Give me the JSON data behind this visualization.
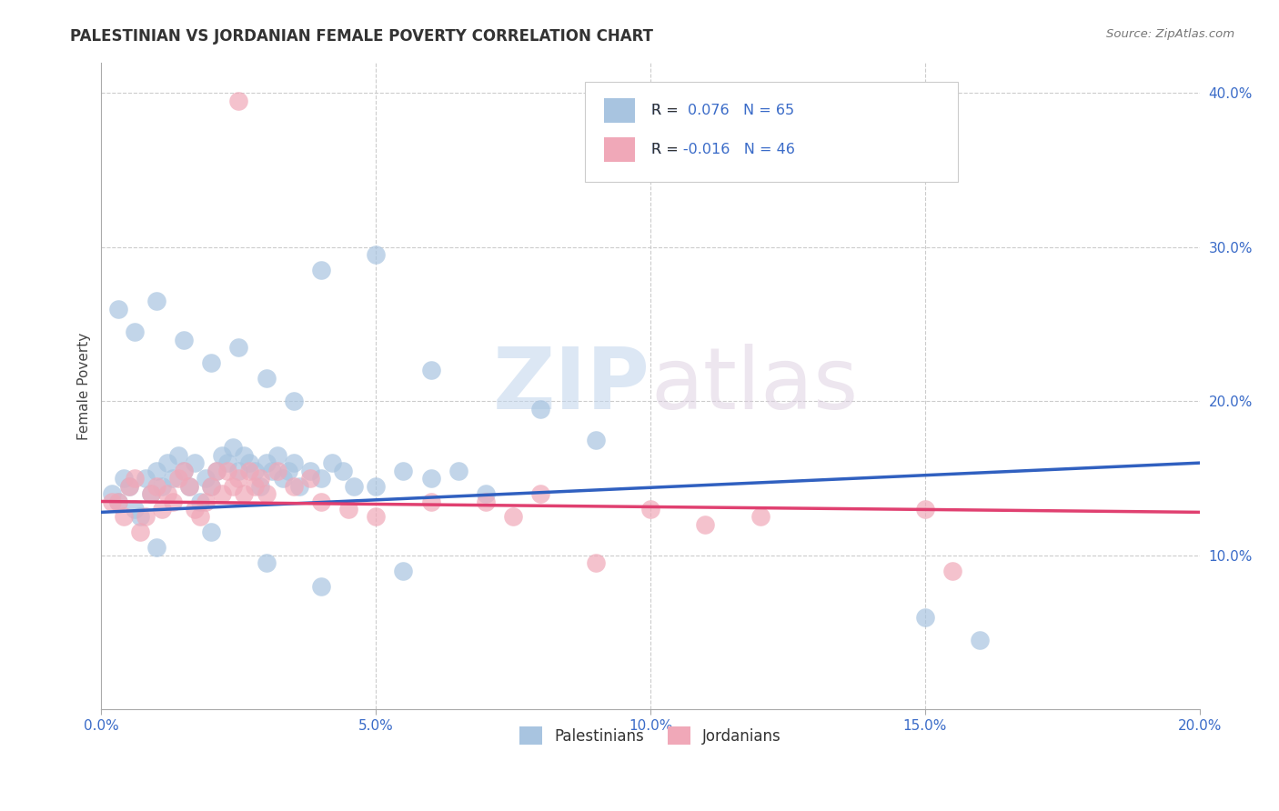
{
  "title": "PALESTINIAN VS JORDANIAN FEMALE POVERTY CORRELATION CHART",
  "source": "Source: ZipAtlas.com",
  "ylabel": "Female Poverty",
  "xlim": [
    0.0,
    0.2
  ],
  "ylim": [
    0.0,
    0.42
  ],
  "xticks": [
    0.0,
    0.05,
    0.1,
    0.15,
    0.2
  ],
  "xtick_labels": [
    "0.0%",
    "5.0%",
    "10.0%",
    "15.0%",
    "20.0%"
  ],
  "yticks": [
    0.1,
    0.2,
    0.3,
    0.4
  ],
  "ytick_labels": [
    "10.0%",
    "20.0%",
    "30.0%",
    "40.0%"
  ],
  "blue_color": "#a8c4e0",
  "pink_color": "#f0a8b8",
  "blue_edge_color": "#7aaad0",
  "pink_edge_color": "#e080a0",
  "blue_line_color": "#3060c0",
  "pink_line_color": "#e04070",
  "R_blue": 0.076,
  "N_blue": 65,
  "R_pink": -0.016,
  "N_pink": 46,
  "watermark_zip": "ZIP",
  "watermark_atlas": "atlas",
  "legend_labels": [
    "Palestinians",
    "Jordanians"
  ],
  "blue_x": [
    0.002,
    0.003,
    0.004,
    0.005,
    0.006,
    0.007,
    0.008,
    0.009,
    0.01,
    0.011,
    0.012,
    0.013,
    0.014,
    0.015,
    0.016,
    0.017,
    0.018,
    0.019,
    0.02,
    0.021,
    0.022,
    0.023,
    0.024,
    0.025,
    0.026,
    0.027,
    0.028,
    0.029,
    0.03,
    0.031,
    0.032,
    0.033,
    0.034,
    0.035,
    0.036,
    0.038,
    0.04,
    0.042,
    0.044,
    0.046,
    0.05,
    0.055,
    0.06,
    0.065,
    0.07,
    0.003,
    0.006,
    0.01,
    0.015,
    0.02,
    0.025,
    0.03,
    0.035,
    0.04,
    0.05,
    0.06,
    0.08,
    0.09,
    0.15,
    0.16,
    0.01,
    0.02,
    0.03,
    0.04,
    0.055
  ],
  "blue_y": [
    0.14,
    0.135,
    0.15,
    0.145,
    0.13,
    0.125,
    0.15,
    0.14,
    0.155,
    0.145,
    0.16,
    0.15,
    0.165,
    0.155,
    0.145,
    0.16,
    0.135,
    0.15,
    0.145,
    0.155,
    0.165,
    0.16,
    0.17,
    0.155,
    0.165,
    0.16,
    0.155,
    0.145,
    0.16,
    0.155,
    0.165,
    0.15,
    0.155,
    0.16,
    0.145,
    0.155,
    0.15,
    0.16,
    0.155,
    0.145,
    0.145,
    0.155,
    0.15,
    0.155,
    0.14,
    0.26,
    0.245,
    0.265,
    0.24,
    0.225,
    0.235,
    0.215,
    0.2,
    0.285,
    0.295,
    0.22,
    0.195,
    0.175,
    0.06,
    0.045,
    0.105,
    0.115,
    0.095,
    0.08,
    0.09
  ],
  "pink_x": [
    0.002,
    0.003,
    0.004,
    0.005,
    0.006,
    0.007,
    0.008,
    0.009,
    0.01,
    0.011,
    0.012,
    0.013,
    0.014,
    0.015,
    0.016,
    0.017,
    0.018,
    0.019,
    0.02,
    0.021,
    0.022,
    0.023,
    0.024,
    0.025,
    0.026,
    0.027,
    0.028,
    0.029,
    0.03,
    0.032,
    0.035,
    0.038,
    0.04,
    0.045,
    0.05,
    0.06,
    0.07,
    0.075,
    0.08,
    0.09,
    0.1,
    0.11,
    0.12,
    0.15,
    0.155,
    0.025
  ],
  "pink_y": [
    0.135,
    0.135,
    0.125,
    0.145,
    0.15,
    0.115,
    0.125,
    0.14,
    0.145,
    0.13,
    0.14,
    0.135,
    0.15,
    0.155,
    0.145,
    0.13,
    0.125,
    0.135,
    0.145,
    0.155,
    0.14,
    0.155,
    0.145,
    0.15,
    0.14,
    0.155,
    0.145,
    0.15,
    0.14,
    0.155,
    0.145,
    0.15,
    0.135,
    0.13,
    0.125,
    0.135,
    0.135,
    0.125,
    0.14,
    0.095,
    0.13,
    0.12,
    0.125,
    0.13,
    0.09,
    0.395
  ],
  "blue_line_x": [
    0.0,
    0.2
  ],
  "blue_line_y": [
    0.128,
    0.16
  ],
  "pink_line_x": [
    0.0,
    0.2
  ],
  "pink_line_y": [
    0.135,
    0.128
  ]
}
